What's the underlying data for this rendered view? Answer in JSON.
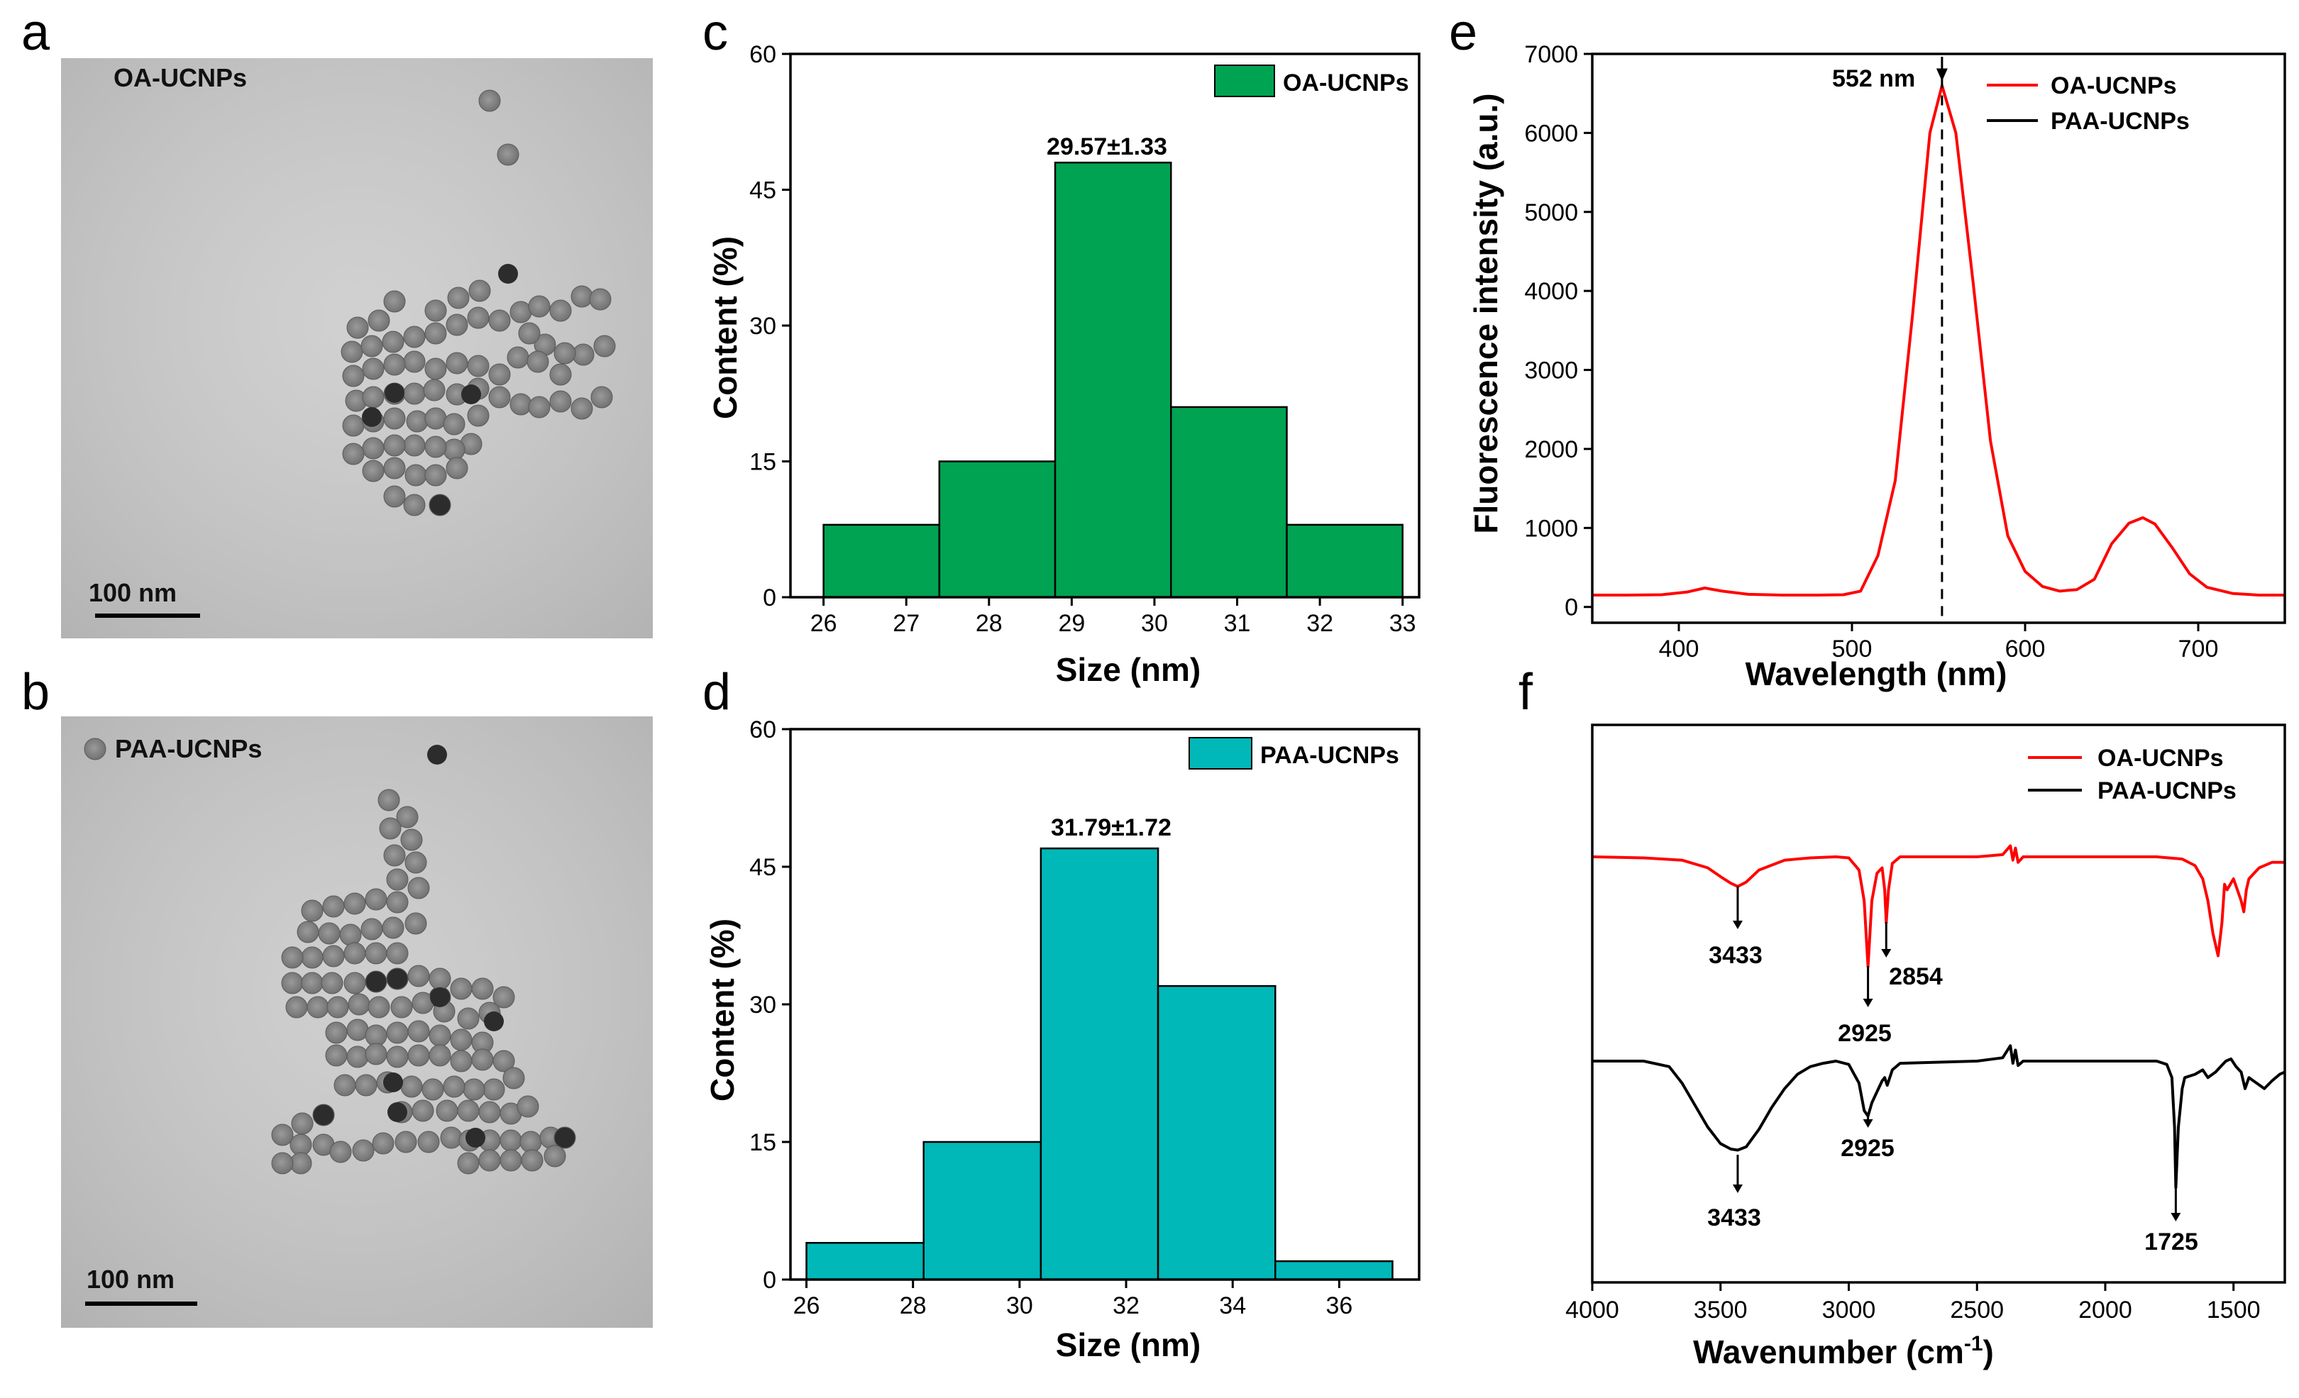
{
  "panels": {
    "a": {
      "letter": "a",
      "label": "OA-UCNPs",
      "scale_bar": "100 nm",
      "particles": [
        [
          690,
          142
        ],
        [
          716,
          218
        ],
        [
          676,
          410
        ],
        [
          646,
          420
        ],
        [
          614,
          438
        ],
        [
          556,
          425
        ],
        [
          534,
          452
        ],
        [
          504,
          462
        ],
        [
          496,
          496
        ],
        [
          524,
          488
        ],
        [
          554,
          482
        ],
        [
          584,
          475
        ],
        [
          614,
          470
        ],
        [
          644,
          458
        ],
        [
          674,
          448
        ],
        [
          704,
          452
        ],
        [
          734,
          440
        ],
        [
          760,
          432
        ],
        [
          790,
          438
        ],
        [
          820,
          418
        ],
        [
          846,
          422
        ],
        [
          852,
          488
        ],
        [
          822,
          500
        ],
        [
          796,
          498
        ],
        [
          768,
          486
        ],
        [
          746,
          470
        ],
        [
          730,
          504
        ],
        [
          758,
          510
        ],
        [
          790,
          528
        ],
        [
          704,
          528
        ],
        [
          674,
          516
        ],
        [
          644,
          512
        ],
        [
          614,
          520
        ],
        [
          584,
          510
        ],
        [
          556,
          514
        ],
        [
          526,
          520
        ],
        [
          498,
          530
        ],
        [
          502,
          565
        ],
        [
          526,
          560
        ],
        [
          556,
          555
        ],
        [
          584,
          555
        ],
        [
          612,
          550
        ],
        [
          644,
          556
        ],
        [
          674,
          548
        ],
        [
          704,
          560
        ],
        [
          734,
          570
        ],
        [
          760,
          574
        ],
        [
          790,
          566
        ],
        [
          820,
          576
        ],
        [
          848,
          560
        ],
        [
          498,
          600
        ],
        [
          526,
          594
        ],
        [
          556,
          590
        ],
        [
          588,
          594
        ],
        [
          614,
          590
        ],
        [
          640,
          598
        ],
        [
          674,
          586
        ],
        [
          664,
          626
        ],
        [
          640,
          634
        ],
        [
          614,
          630
        ],
        [
          584,
          628
        ],
        [
          556,
          628
        ],
        [
          526,
          632
        ],
        [
          498,
          640
        ],
        [
          526,
          664
        ],
        [
          556,
          660
        ],
        [
          586,
          670
        ],
        [
          614,
          670
        ],
        [
          644,
          660
        ],
        [
          584,
          712
        ],
        [
          556,
          700
        ],
        [
          620,
          712
        ]
      ],
      "dark_particles": [
        [
          664,
          556
        ],
        [
          716,
          386
        ],
        [
          620,
          712
        ],
        [
          524,
          588
        ],
        [
          556,
          554
        ]
      ]
    },
    "b": {
      "letter": "b",
      "label": "PAA-UCNPs",
      "scale_bar": "100 nm",
      "particles": [
        [
          134,
          1056
        ],
        [
          548,
          1128
        ],
        [
          574,
          1152
        ],
        [
          550,
          1168
        ],
        [
          580,
          1184
        ],
        [
          556,
          1206
        ],
        [
          586,
          1216
        ],
        [
          560,
          1240
        ],
        [
          590,
          1252
        ],
        [
          560,
          1272
        ],
        [
          530,
          1268
        ],
        [
          500,
          1274
        ],
        [
          470,
          1278
        ],
        [
          440,
          1284
        ],
        [
          434,
          1314
        ],
        [
          464,
          1316
        ],
        [
          494,
          1318
        ],
        [
          524,
          1310
        ],
        [
          554,
          1308
        ],
        [
          586,
          1302
        ],
        [
          560,
          1344
        ],
        [
          530,
          1344
        ],
        [
          500,
          1344
        ],
        [
          470,
          1348
        ],
        [
          440,
          1350
        ],
        [
          412,
          1350
        ],
        [
          620,
          1406
        ],
        [
          412,
          1386
        ],
        [
          440,
          1386
        ],
        [
          468,
          1386
        ],
        [
          500,
          1386
        ],
        [
          530,
          1384
        ],
        [
          560,
          1380
        ],
        [
          590,
          1376
        ],
        [
          620,
          1380
        ],
        [
          650,
          1394
        ],
        [
          680,
          1394
        ],
        [
          710,
          1406
        ],
        [
          418,
          1420
        ],
        [
          448,
          1420
        ],
        [
          476,
          1420
        ],
        [
          506,
          1416
        ],
        [
          534,
          1420
        ],
        [
          566,
          1420
        ],
        [
          596,
          1414
        ],
        [
          626,
          1426
        ],
        [
          660,
          1436
        ],
        [
          690,
          1428
        ],
        [
          474,
          1456
        ],
        [
          504,
          1452
        ],
        [
          530,
          1460
        ],
        [
          560,
          1456
        ],
        [
          590,
          1454
        ],
        [
          620,
          1460
        ],
        [
          650,
          1466
        ],
        [
          680,
          1470
        ],
        [
          474,
          1488
        ],
        [
          504,
          1490
        ],
        [
          530,
          1486
        ],
        [
          560,
          1490
        ],
        [
          590,
          1488
        ],
        [
          620,
          1488
        ],
        [
          650,
          1496
        ],
        [
          680,
          1494
        ],
        [
          710,
          1496
        ],
        [
          724,
          1520
        ],
        [
          696,
          1536
        ],
        [
          668,
          1536
        ],
        [
          640,
          1532
        ],
        [
          610,
          1536
        ],
        [
          580,
          1532
        ],
        [
          546,
          1526
        ],
        [
          516,
          1530
        ],
        [
          486,
          1530
        ],
        [
          566,
          1568
        ],
        [
          596,
          1566
        ],
        [
          630,
          1566
        ],
        [
          660,
          1566
        ],
        [
          690,
          1568
        ],
        [
          720,
          1570
        ],
        [
          744,
          1560
        ],
        [
          456,
          1572
        ],
        [
          426,
          1584
        ],
        [
          398,
          1600
        ],
        [
          424,
          1614
        ],
        [
          456,
          1614
        ],
        [
          424,
          1640
        ],
        [
          398,
          1640
        ],
        [
          480,
          1624
        ],
        [
          512,
          1622
        ],
        [
          540,
          1612
        ],
        [
          572,
          1610
        ],
        [
          604,
          1610
        ],
        [
          636,
          1604
        ],
        [
          662,
          1608
        ],
        [
          690,
          1608
        ],
        [
          720,
          1608
        ],
        [
          748,
          1610
        ],
        [
          776,
          1604
        ],
        [
          796,
          1604
        ],
        [
          782,
          1630
        ],
        [
          750,
          1636
        ],
        [
          720,
          1636
        ],
        [
          690,
          1636
        ],
        [
          660,
          1640
        ]
      ],
      "dark_particles": [
        [
          616,
          1064
        ],
        [
          620,
          1406
        ],
        [
          560,
          1380
        ],
        [
          530,
          1384
        ],
        [
          554,
          1526
        ],
        [
          560,
          1568
        ],
        [
          456,
          1572
        ],
        [
          796,
          1604
        ],
        [
          670,
          1604
        ],
        [
          696,
          1440
        ]
      ]
    },
    "c": {
      "letter": "c",
      "chart_data": {
        "type": "bar",
        "bins": [
          [
            26,
            27.4
          ],
          [
            27.4,
            28.8
          ],
          [
            28.8,
            30.2
          ],
          [
            30.2,
            31.6
          ],
          [
            31.6,
            33
          ]
        ],
        "values": [
          8,
          15,
          48,
          21,
          8
        ],
        "xlabel": "Size (nm)",
        "ylabel": "Content (%)",
        "xlim": [
          25.6,
          33.2
        ],
        "ylim": [
          0,
          60
        ],
        "xticks": [
          26,
          27,
          28,
          29,
          30,
          31,
          32,
          33
        ],
        "yticks": [
          0,
          15,
          30,
          45,
          60
        ],
        "legend": "OA-UCNPs",
        "legend_position": "top-right",
        "color": "#00a351",
        "annotation": "29.57±1.33"
      }
    },
    "d": {
      "letter": "d",
      "chart_data": {
        "type": "bar",
        "bins": [
          [
            26,
            28.2
          ],
          [
            28.2,
            30.4
          ],
          [
            30.4,
            32.6
          ],
          [
            32.6,
            34.8
          ],
          [
            34.8,
            37
          ]
        ],
        "values": [
          4,
          15,
          47,
          32,
          2
        ],
        "xlabel": "Size (nm)",
        "ylabel": "Content (%)",
        "xlim": [
          25.7,
          37.5
        ],
        "ylim": [
          0,
          60
        ],
        "xticks": [
          26,
          28,
          30,
          32,
          34,
          36
        ],
        "yticks": [
          0,
          15,
          30,
          45,
          60
        ],
        "legend": "PAA-UCNPs",
        "legend_position": "top-right",
        "color": "#00b8b8",
        "annotation": "31.79±1.72"
      }
    },
    "e": {
      "letter": "e",
      "chart_data": {
        "type": "line",
        "xlabel": "Wavelength (nm)",
        "ylabel": "Fluorescence intensity (a.u.)",
        "xlim": [
          350,
          750
        ],
        "ylim": [
          -200,
          7000
        ],
        "xticks": [
          400,
          500,
          600,
          700
        ],
        "yticks": [
          0,
          1000,
          2000,
          3000,
          4000,
          5000,
          6000,
          7000
        ],
        "legend_position": "top-right",
        "series": [
          {
            "name": "OA-UCNPs",
            "color": "#ff0000",
            "x": [
              350,
              370,
              390,
              405,
              415,
              425,
              440,
              460,
              480,
              495,
              505,
              515,
              525,
              535,
              545,
              552,
              560,
              570,
              580,
              590,
              600,
              610,
              620,
              630,
              640,
              650,
              660,
              668,
              675,
              685,
              695,
              705,
              720,
              735,
              750
            ],
            "y": [
              150,
              150,
              155,
              190,
              240,
              200,
              160,
              150,
              150,
              155,
              200,
              650,
              1600,
              3700,
              6000,
              6600,
              6000,
              4100,
              2100,
              900,
              450,
              260,
              200,
              220,
              350,
              800,
              1060,
              1130,
              1050,
              750,
              420,
              250,
              170,
              150,
              150
            ]
          },
          {
            "name": "PAA-UCNPs",
            "color": "#000000",
            "x": [],
            "y": []
          }
        ],
        "annotation": "552 nm",
        "annotation_x": 552
      }
    },
    "f": {
      "letter": "f",
      "chart_data": {
        "type": "line",
        "xlabel": "Wavenumber (cm",
        "xlabel_sup": "-1",
        "xlabel_end": ")",
        "xlim": [
          4000,
          1300
        ],
        "xticks": [
          4000,
          3500,
          3000,
          2500,
          2000,
          1500
        ],
        "reversed_x": true,
        "legend_position": "top-right",
        "series": [
          {
            "name": "OA-UCNPs",
            "color": "#ff0000",
            "x": [
              4000,
              3800,
              3650,
              3550,
              3500,
              3460,
              3433,
              3400,
              3350,
              3250,
              3150,
              3050,
              3000,
              2960,
              2940,
              2925,
              2910,
              2890,
              2870,
              2860,
              2854,
              2845,
              2830,
              2800,
              2500,
              2400,
              2370,
              2360,
              2350,
              2340,
              2320,
              2200,
              2000,
              1800,
              1700,
              1650,
              1620,
              1600,
              1580,
              1560,
              1545,
              1535,
              1525,
              1500,
              1470,
              1460,
              1450,
              1440,
              1420,
              1400,
              1380,
              1350,
              1300
            ],
            "y": [
              0,
              -1,
              -3,
              -10,
              -18,
              -24,
              -27,
              -23,
              -12,
              -3,
              -1,
              0,
              -1,
              -12,
              -40,
              -100,
              -40,
              -15,
              -10,
              -30,
              -60,
              -30,
              -6,
              0,
              0,
              2,
              10,
              -3,
              8,
              -5,
              0,
              0,
              0,
              0,
              -2,
              -8,
              -20,
              -40,
              -70,
              -90,
              -60,
              -25,
              -30,
              -20,
              -40,
              -50,
              -30,
              -20,
              -15,
              -10,
              -8,
              -5,
              -5
            ]
          },
          {
            "name": "PAA-UCNPs",
            "color": "#000000",
            "x": [
              4000,
              3800,
              3700,
              3650,
              3600,
              3550,
              3500,
              3460,
              3433,
              3400,
              3350,
              3300,
              3250,
              3200,
              3150,
              3100,
              3050,
              3000,
              2960,
              2940,
              2925,
              2910,
              2890,
              2870,
              2860,
              2850,
              2830,
              2800,
              2500,
              2400,
              2370,
              2360,
              2350,
              2340,
              2320,
              2200,
              2000,
              1800,
              1760,
              1740,
              1730,
              1725,
              1715,
              1700,
              1690,
              1650,
              1620,
              1600,
              1570,
              1550,
              1530,
              1510,
              1490,
              1470,
              1455,
              1440,
              1410,
              1380,
              1350,
              1320,
              1300
            ],
            "y": [
              0,
              0,
              -5,
              -20,
              -40,
              -60,
              -75,
              -80,
              -81,
              -78,
              -62,
              -42,
              -25,
              -12,
              -5,
              -2,
              0,
              -3,
              -20,
              -45,
              -50,
              -38,
              -28,
              -18,
              -15,
              -22,
              -8,
              -2,
              0,
              3,
              14,
              -2,
              10,
              -4,
              0,
              0,
              0,
              0,
              -3,
              -15,
              -60,
              -115,
              -60,
              -25,
              -15,
              -12,
              -8,
              -15,
              -10,
              -5,
              0,
              2,
              -5,
              -10,
              -25,
              -15,
              -20,
              -25,
              -18,
              -12,
              -10
            ]
          }
        ],
        "annotations": {
          "oa": [
            "3433",
            "2925",
            "2854"
          ],
          "paa": [
            "3433",
            "2925",
            "1725"
          ]
        }
      }
    }
  }
}
